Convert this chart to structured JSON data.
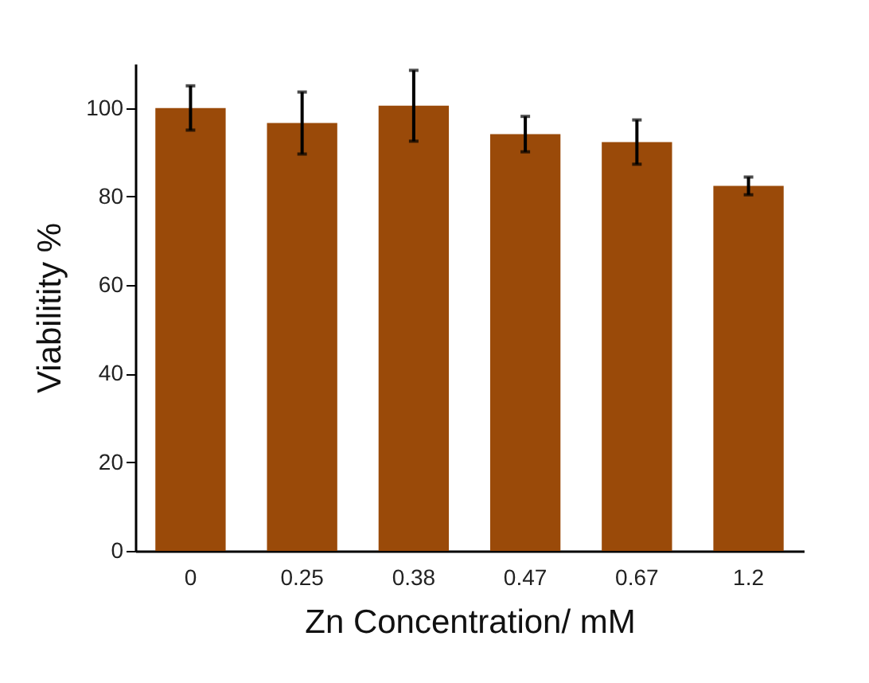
{
  "chart_data": {
    "type": "bar",
    "xlabel": "Zn Concentration/ mM",
    "ylabel": "Viabilitity %",
    "categories": [
      "0",
      "0.25",
      "0.38",
      "0.47",
      "0.67",
      "1.2"
    ],
    "values": [
      100,
      96.6,
      100.5,
      94.1,
      92.3,
      82.4
    ],
    "errors": [
      5,
      7,
      8,
      4,
      5,
      2
    ],
    "color": "#9a4a09",
    "ylim": [
      0,
      110
    ],
    "yticks": [
      0,
      20,
      40,
      60,
      80,
      100
    ],
    "grid": false
  }
}
